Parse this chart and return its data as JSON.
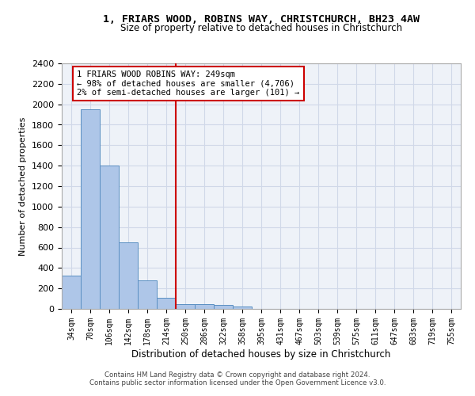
{
  "title_line1": "1, FRIARS WOOD, ROBINS WAY, CHRISTCHURCH, BH23 4AW",
  "title_line2": "Size of property relative to detached houses in Christchurch",
  "xlabel": "Distribution of detached houses by size in Christchurch",
  "ylabel": "Number of detached properties",
  "bin_labels": [
    "34sqm",
    "70sqm",
    "106sqm",
    "142sqm",
    "178sqm",
    "214sqm",
    "250sqm",
    "286sqm",
    "322sqm",
    "358sqm",
    "395sqm",
    "431sqm",
    "467sqm",
    "503sqm",
    "539sqm",
    "575sqm",
    "611sqm",
    "647sqm",
    "683sqm",
    "719sqm",
    "755sqm"
  ],
  "bar_values": [
    325,
    1950,
    1400,
    650,
    275,
    105,
    50,
    45,
    40,
    25,
    0,
    0,
    0,
    0,
    0,
    0,
    0,
    0,
    0,
    0,
    0
  ],
  "bar_color": "#aec6e8",
  "bar_edge_color": "#5a8fc2",
  "annotation_text": "1 FRIARS WOOD ROBINS WAY: 249sqm\n← 98% of detached houses are smaller (4,706)\n2% of semi-detached houses are larger (101) →",
  "vline_color": "#cc0000",
  "grid_color": "#d0d8e8",
  "background_color": "#eef2f8",
  "footer_line1": "Contains HM Land Registry data © Crown copyright and database right 2024.",
  "footer_line2": "Contains public sector information licensed under the Open Government Licence v3.0.",
  "ylim": [
    0,
    2400
  ],
  "yticks": [
    0,
    200,
    400,
    600,
    800,
    1000,
    1200,
    1400,
    1600,
    1800,
    2000,
    2200,
    2400
  ]
}
